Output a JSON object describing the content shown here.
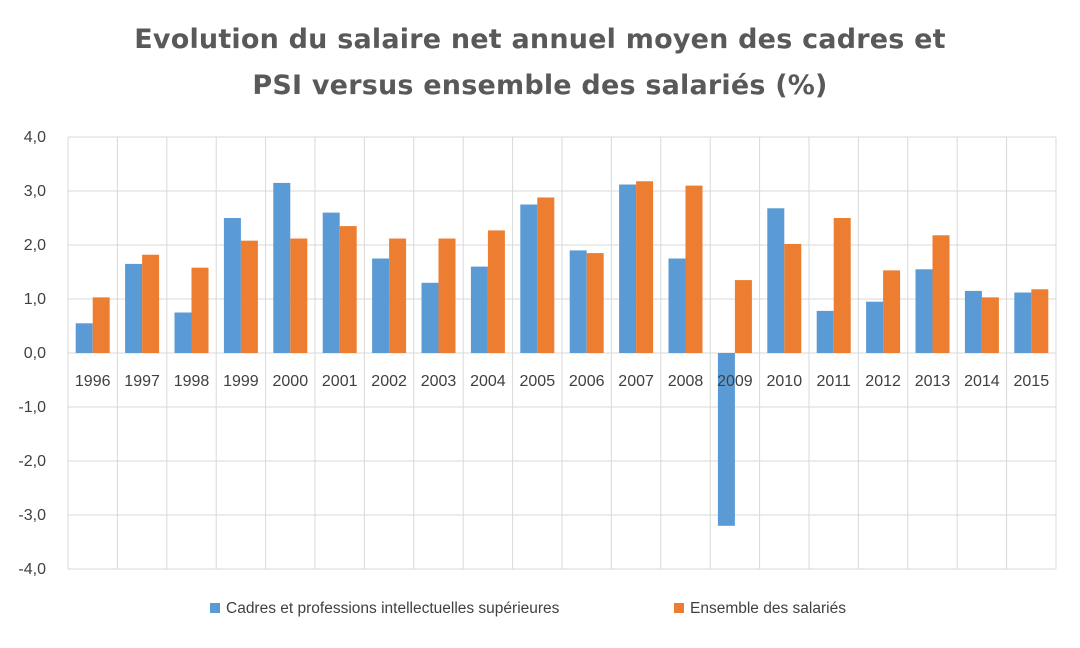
{
  "chart_data": {
    "type": "bar",
    "title": "Evolution du salaire net annuel moyen des cadres et PSI versus ensemble des salariés (%)",
    "title_lines": [
      "Evolution du salaire net annuel moyen des cadres et",
      "PSI versus ensemble des salariés (%)"
    ],
    "categories": [
      "1996",
      "1997",
      "1998",
      "1999",
      "2000",
      "2001",
      "2002",
      "2003",
      "2004",
      "2005",
      "2006",
      "2007",
      "2008",
      "2009",
      "2010",
      "2011",
      "2012",
      "2013",
      "2014",
      "2015"
    ],
    "series": [
      {
        "name": "Cadres et professions intellectuelles supérieures",
        "color": "#5b9bd5",
        "values": [
          0.55,
          1.65,
          0.75,
          2.5,
          3.15,
          2.6,
          1.75,
          1.3,
          1.6,
          2.75,
          1.9,
          3.12,
          1.75,
          -3.2,
          2.68,
          0.78,
          0.95,
          1.55,
          1.15,
          1.12
        ]
      },
      {
        "name": "Ensemble des salariés",
        "color": "#ed7d31",
        "values": [
          1.03,
          1.82,
          1.58,
          2.08,
          2.12,
          2.35,
          2.12,
          2.12,
          2.27,
          2.88,
          1.85,
          3.18,
          3.1,
          1.35,
          2.02,
          2.5,
          1.53,
          2.18,
          1.03,
          1.18
        ]
      }
    ],
    "ylim": [
      -4.0,
      4.0
    ],
    "y_ticks": [
      "4,0",
      "3,0",
      "2,0",
      "1,0",
      "0,0",
      "-1,0",
      "-2,0",
      "-3,0",
      "-4,0"
    ],
    "y_tick_values": [
      4,
      3,
      2,
      1,
      0,
      -1,
      -2,
      -3,
      -4
    ],
    "grid": true,
    "legend_position": "bottom"
  }
}
